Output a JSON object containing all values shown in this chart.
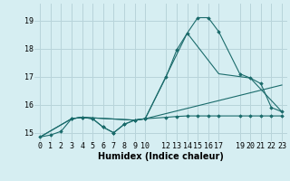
{
  "xlabel": "Humidex (Indice chaleur)",
  "background_color": "#d6eef2",
  "grid_color": "#b8d4da",
  "line_color": "#1a6b6b",
  "xlim": [
    -0.5,
    23.5
  ],
  "ylim": [
    14.7,
    19.6
  ],
  "yticks": [
    15,
    16,
    17,
    18,
    19
  ],
  "xticks": [
    0,
    1,
    2,
    3,
    4,
    5,
    6,
    7,
    8,
    9,
    10,
    12,
    13,
    14,
    15,
    16,
    17,
    19,
    20,
    21,
    22,
    23
  ],
  "series1_x": [
    0,
    1,
    2,
    3,
    4,
    5,
    6,
    7,
    8,
    9,
    10,
    12,
    13,
    14,
    15,
    16,
    17,
    19,
    20,
    21,
    22,
    23
  ],
  "series1_y": [
    14.85,
    14.92,
    15.05,
    15.5,
    15.55,
    15.5,
    15.2,
    15.0,
    15.3,
    15.45,
    15.5,
    15.55,
    15.58,
    15.6,
    15.6,
    15.6,
    15.6,
    15.6,
    15.6,
    15.6,
    15.6,
    15.6
  ],
  "series2_x": [
    3,
    4,
    5,
    6,
    7,
    8,
    9,
    10,
    12,
    13,
    14,
    15,
    16,
    17,
    19,
    20,
    21,
    22,
    23
  ],
  "series2_y": [
    15.5,
    15.55,
    15.5,
    15.2,
    15.0,
    15.3,
    15.45,
    15.5,
    17.0,
    17.95,
    18.55,
    19.1,
    19.1,
    18.6,
    17.1,
    16.95,
    16.75,
    15.9,
    15.75
  ],
  "series3_x": [
    0,
    3,
    4,
    9,
    10,
    23
  ],
  "series3_y": [
    14.85,
    15.5,
    15.55,
    15.45,
    15.5,
    16.7
  ],
  "series4_x": [
    0,
    3,
    4,
    9,
    10,
    14,
    17,
    20,
    23
  ],
  "series4_y": [
    14.85,
    15.5,
    15.55,
    15.45,
    15.5,
    18.55,
    17.1,
    16.95,
    15.75
  ]
}
